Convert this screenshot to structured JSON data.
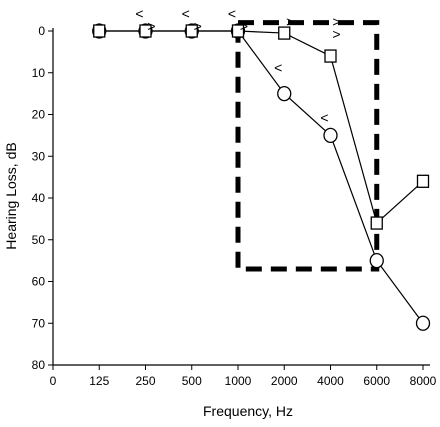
{
  "chart_data": {
    "type": "line",
    "title": "",
    "xlabel": "Frequency, Hz",
    "ylabel": "Hearing Loss, dB",
    "x_ticks": [
      "0",
      "125",
      "250",
      "500",
      "1000",
      "2000",
      "4000",
      "6000",
      "8000"
    ],
    "y_ticks": [
      "0",
      "10",
      "20",
      "30",
      "40",
      "50",
      "60",
      "70",
      "80"
    ],
    "ylim": [
      0,
      80
    ],
    "y_inverted": true,
    "grid": false,
    "legend": "none",
    "series": [
      {
        "marker": "circle",
        "x": [
          "125",
          "250",
          "500",
          "1000",
          "2000",
          "4000",
          "6000",
          "8000"
        ],
        "y": [
          0,
          0,
          0,
          0,
          15,
          25,
          55,
          70
        ]
      },
      {
        "marker": "square",
        "x": [
          "125",
          "250",
          "500",
          "1000",
          "2000",
          "4000",
          "6000",
          "8000"
        ],
        "y": [
          0,
          0,
          0,
          0,
          0.5,
          6,
          46,
          36
        ]
      }
    ],
    "masking_marks": [
      {
        "text": "<",
        "x": "250",
        "y": -4
      },
      {
        "text": ">",
        "x": "250",
        "y": -1
      },
      {
        "text": "<",
        "x": "500",
        "y": -4
      },
      {
        "text": ">",
        "x": "500",
        "y": -1
      },
      {
        "text": "<",
        "x": "1000",
        "y": -4
      },
      {
        "text": ">",
        "x": "1000",
        "y": -1
      },
      {
        "text": ">",
        "x": "2000",
        "y": -2
      },
      {
        "text": ">",
        "x": "4000",
        "y": -2
      },
      {
        "text": ">",
        "x": "4000",
        "y": 1
      },
      {
        "text": "<",
        "x": "2000",
        "y": 9
      },
      {
        "text": "<",
        "x": "4000",
        "y": 21
      }
    ],
    "annotations": [
      {
        "type": "dashed-box",
        "x_from": "1000",
        "x_to": "6000",
        "y_from": -2,
        "y_to": 57
      }
    ],
    "colors": {
      "line": "#000000",
      "marker_fill": "#ffffff"
    }
  }
}
